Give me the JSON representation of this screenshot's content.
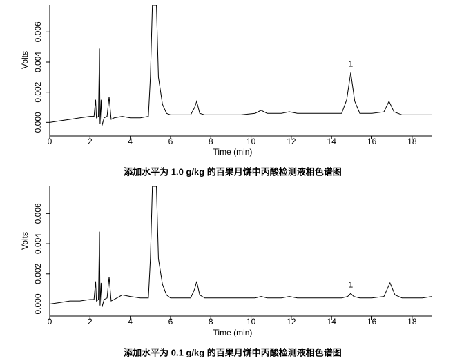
{
  "chart_data": [
    {
      "type": "line",
      "title": "添加水平为 1.0 g/kg 的百果月饼中丙酸检测液相色谱图",
      "x_label": "Time (min)",
      "y_label": "Volts",
      "xlim": [
        0,
        19
      ],
      "xticks": [
        0,
        2,
        4,
        6,
        8,
        10,
        12,
        14,
        16,
        18
      ],
      "ylim": [
        -0.0009,
        0.0078
      ],
      "yticks": [
        {
          "value": 0,
          "label": "0.000"
        },
        {
          "value": 0.002,
          "label": "0.002"
        },
        {
          "value": 0.004,
          "label": "0.004"
        },
        {
          "value": 0.006,
          "label": "0.006"
        }
      ],
      "annotations": [
        {
          "text": "1",
          "x": 14.95
        }
      ],
      "series": [
        {
          "color": "#000000",
          "x": [
            0,
            0.5,
            1.0,
            1.5,
            2.0,
            2.2,
            2.28,
            2.32,
            2.42,
            2.47,
            2.5,
            2.55,
            2.6,
            2.7,
            2.85,
            2.95,
            3.05,
            3.2,
            3.6,
            4.0,
            4.5,
            4.9,
            5.0,
            5.1,
            5.3,
            5.4,
            5.6,
            5.8,
            6.0,
            6.5,
            7.0,
            7.2,
            7.3,
            7.45,
            7.7,
            8.5,
            9.5,
            10.2,
            10.5,
            10.8,
            11.5,
            11.9,
            12.3,
            13.5,
            14.5,
            14.75,
            14.95,
            15.15,
            15.4,
            16.0,
            16.6,
            16.85,
            17.1,
            17.5,
            18.5,
            19
          ],
          "values": [
            0,
            0.0001,
            0.0002,
            0.0003,
            0.0004,
            0.0004,
            0.0015,
            0.0003,
            0.0004,
            0.0049,
            -0.0001,
            0.0015,
            -0.0002,
            0.0003,
            0.0004,
            0.0017,
            0.0002,
            0.0003,
            0.0004,
            0.0003,
            0.0003,
            0.0004,
            0.003,
            0.0078,
            0.0078,
            0.003,
            0.0012,
            0.0006,
            0.0005,
            0.0005,
            0.0005,
            0.001,
            0.0014,
            0.0006,
            0.0005,
            0.0005,
            0.0005,
            0.0006,
            0.0008,
            0.0006,
            0.0006,
            0.0007,
            0.0006,
            0.0006,
            0.0006,
            0.0015,
            0.0033,
            0.0014,
            0.0006,
            0.0006,
            0.0007,
            0.0014,
            0.0007,
            0.0005,
            0.0005,
            0.0005
          ]
        }
      ]
    },
    {
      "type": "line",
      "title": "添加水平为 0.1 g/kg 的百果月饼中丙酸检测液相色谱图",
      "x_label": "Time (min)",
      "y_label": "Volts",
      "xlim": [
        0,
        19
      ],
      "xticks": [
        0,
        2,
        4,
        6,
        8,
        10,
        12,
        14,
        16,
        18
      ],
      "ylim": [
        -0.0008,
        0.0078
      ],
      "yticks": [
        {
          "value": 0,
          "label": "0.000"
        },
        {
          "value": 0.002,
          "label": "0.002"
        },
        {
          "value": 0.004,
          "label": "0.004"
        },
        {
          "value": 0.006,
          "label": "0.006"
        }
      ],
      "annotations": [
        {
          "text": "1",
          "x": 14.95
        }
      ],
      "series": [
        {
          "color": "#000000",
          "x": [
            0,
            0.5,
            1.0,
            1.5,
            2.0,
            2.2,
            2.28,
            2.32,
            2.42,
            2.47,
            2.5,
            2.55,
            2.6,
            2.7,
            2.85,
            2.95,
            3.05,
            3.2,
            3.6,
            4.0,
            4.5,
            4.9,
            5.0,
            5.1,
            5.3,
            5.4,
            5.6,
            5.8,
            6.0,
            6.5,
            7.0,
            7.2,
            7.3,
            7.45,
            7.7,
            8.5,
            9.5,
            10.2,
            10.5,
            10.8,
            11.5,
            11.9,
            12.3,
            13.5,
            14.5,
            14.8,
            14.95,
            15.1,
            15.4,
            16.0,
            16.6,
            16.9,
            17.15,
            17.5,
            18.5,
            19
          ],
          "values": [
            0,
            0.0001,
            0.0002,
            0.0002,
            0.0003,
            0.0003,
            0.0015,
            0.0002,
            0.0003,
            0.0048,
            -0.0001,
            0.0014,
            -0.0002,
            0.0003,
            0.0004,
            0.0018,
            0.0002,
            0.0003,
            0.0006,
            0.0005,
            0.0004,
            0.0004,
            0.003,
            0.0078,
            0.0078,
            0.003,
            0.0013,
            0.0006,
            0.0004,
            0.0004,
            0.0004,
            0.001,
            0.0015,
            0.0006,
            0.0004,
            0.0004,
            0.0004,
            0.0004,
            0.0005,
            0.0004,
            0.0004,
            0.0005,
            0.0004,
            0.0004,
            0.0004,
            0.0005,
            0.0007,
            0.0005,
            0.0004,
            0.0004,
            0.0005,
            0.0014,
            0.0006,
            0.0004,
            0.0004,
            0.0005
          ]
        }
      ]
    }
  ]
}
